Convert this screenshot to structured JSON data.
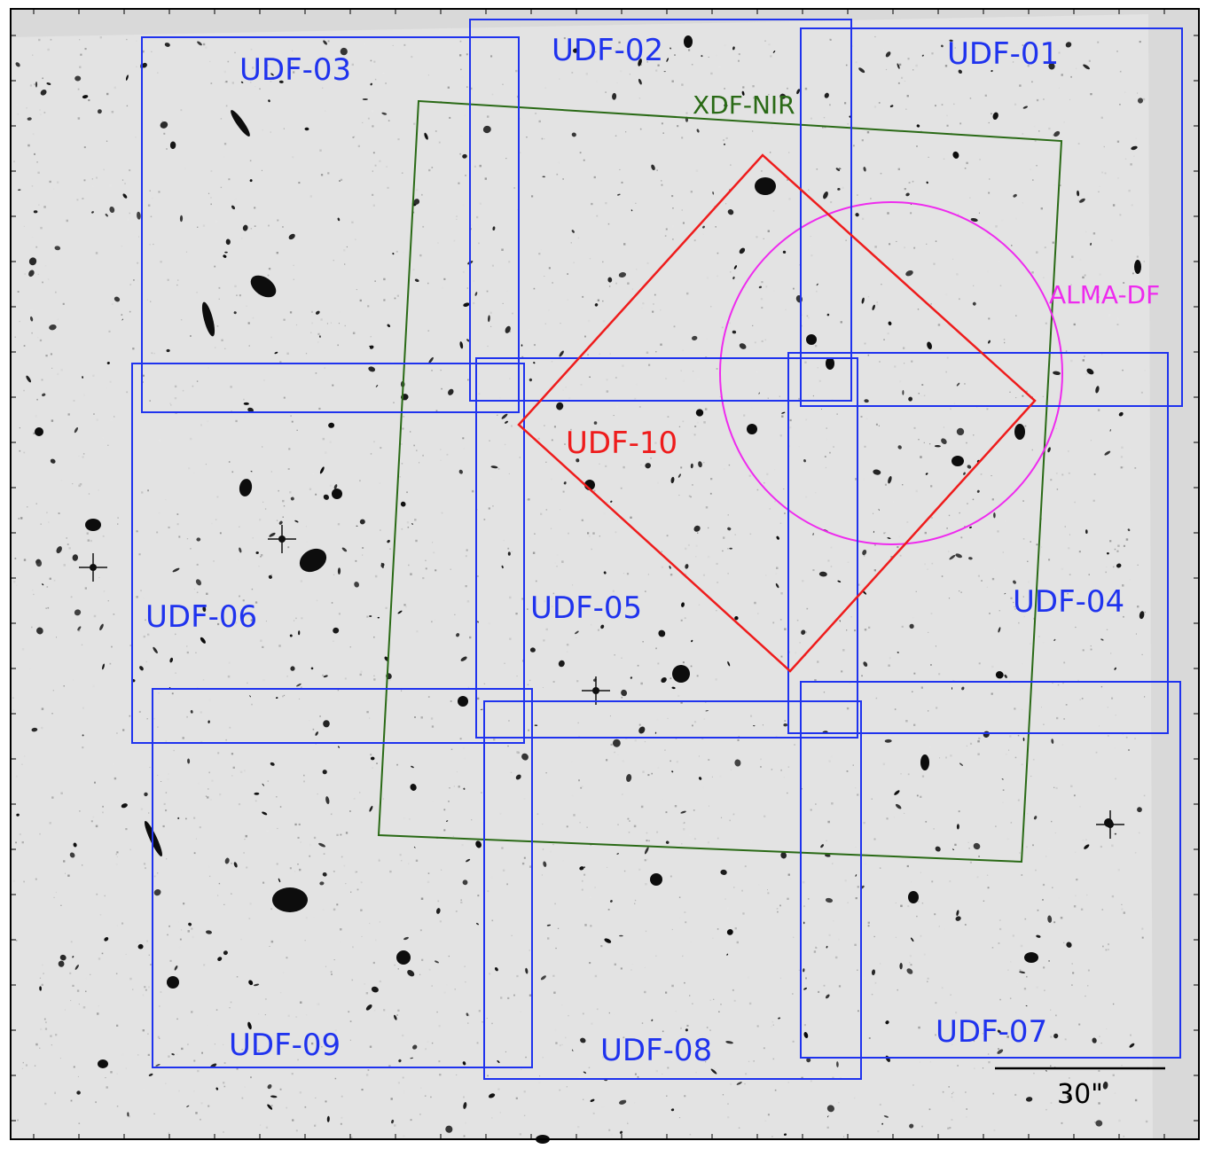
{
  "figure": {
    "background_color": "#d9d9d9",
    "field_color": "#e4e4e4",
    "colors": {
      "udf": "#1f33ee",
      "udf10": "#ee1c1c",
      "xdf": "#2a6a16",
      "alma": "#ee2bee",
      "scale": "#000000"
    }
  },
  "labels": {
    "udf01": "UDF-01",
    "udf02": "UDF-02",
    "udf03": "UDF-03",
    "udf04": "UDF-04",
    "udf05": "UDF-05",
    "udf06": "UDF-06",
    "udf07": "UDF-07",
    "udf08": "UDF-08",
    "udf09": "UDF-09",
    "udf10": "UDF-10",
    "xdf": "XDF-NIR",
    "alma": "ALMA-DF",
    "scale": "30\""
  }
}
